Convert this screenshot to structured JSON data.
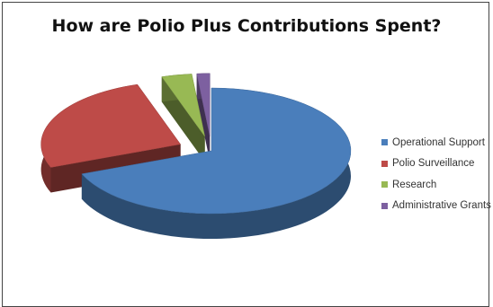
{
  "chart_data": {
    "type": "pie",
    "title": "How are Polio Plus Contributions Spent?",
    "slices": [
      {
        "label": "Operational Support",
        "value": 69,
        "color": "#4a7ebb"
      },
      {
        "label": "Polio Surveillance",
        "value": 26,
        "color": "#be4b48"
      },
      {
        "label": "Research",
        "value": 3.5,
        "color": "#98b954"
      },
      {
        "label": "Administrative Grants",
        "value": 1.5,
        "color": "#7d60a0"
      }
    ],
    "legend_position": "right",
    "style": "3d-exploded"
  }
}
